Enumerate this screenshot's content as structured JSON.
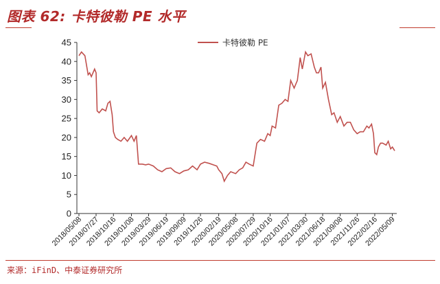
{
  "header": {
    "title": "图表 62:  卡特彼勒 PE 水平"
  },
  "footer": {
    "source": "来源：iFinD、中泰证券研究所"
  },
  "colors": {
    "accent": "#c0392b",
    "series": "#c0504d"
  },
  "chart_data": {
    "type": "line",
    "title": "",
    "xlabel": "",
    "ylabel": "",
    "ylim": [
      0,
      45
    ],
    "yticks": [
      0,
      5,
      10,
      15,
      20,
      25,
      30,
      35,
      40,
      45
    ],
    "legend_position": "top-center",
    "grid": false,
    "x_tick_labels": [
      "2018/05/08",
      "2018/07/27",
      "2018/10/16",
      "2019/01/08",
      "2019/03/29",
      "2019/06/19",
      "2019/09/09",
      "2019/11/26",
      "2020/02/19",
      "2020/05/08",
      "2020/07/29",
      "2020/10/16",
      "2021/01/07",
      "2021/03/30",
      "2021/06/18",
      "2021/09/08",
      "2021/11/26",
      "2022/02/16",
      "2022/05/09"
    ],
    "series": [
      {
        "name": "卡特彼勒 PE",
        "x": [
          "2018/05/08",
          "2018/05/20",
          "2018/06/05",
          "2018/06/20",
          "2018/06/27",
          "2018/07/05",
          "2018/07/20",
          "2018/07/27",
          "2018/08/01",
          "2018/08/10",
          "2018/08/25",
          "2018/09/10",
          "2018/09/20",
          "2018/09/30",
          "2018/10/10",
          "2018/10/16",
          "2018/10/25",
          "2018/11/05",
          "2018/11/20",
          "2018/12/05",
          "2018/12/20",
          "2019/01/08",
          "2019/01/20",
          "2019/01/31",
          "2019/02/10",
          "2019/02/28",
          "2019/03/15",
          "2019/03/29",
          "2019/04/20",
          "2019/05/10",
          "2019/05/30",
          "2019/06/19",
          "2019/07/10",
          "2019/07/30",
          "2019/08/20",
          "2019/09/09",
          "2019/09/30",
          "2019/10/20",
          "2019/11/10",
          "2019/11/26",
          "2019/12/15",
          "2020/01/05",
          "2020/01/25",
          "2020/02/10",
          "2020/02/19",
          "2020/03/05",
          "2020/03/16",
          "2020/03/31",
          "2020/04/15",
          "2020/05/08",
          "2020/05/25",
          "2020/06/10",
          "2020/06/25",
          "2020/07/10",
          "2020/07/29",
          "2020/08/15",
          "2020/09/01",
          "2020/09/20",
          "2020/10/05",
          "2020/10/16",
          "2020/10/25",
          "2020/11/10",
          "2020/11/25",
          "2020/12/10",
          "2020/12/25",
          "2021/01/07",
          "2021/01/20",
          "2021/02/05",
          "2021/02/20",
          "2021/03/05",
          "2021/03/15",
          "2021/03/30",
          "2021/04/10",
          "2021/04/25",
          "2021/05/10",
          "2021/05/20",
          "2021/05/30",
          "2021/06/10",
          "2021/06/18",
          "2021/07/01",
          "2021/07/15",
          "2021/07/30",
          "2021/08/10",
          "2021/08/25",
          "2021/09/08",
          "2021/09/25",
          "2021/10/10",
          "2021/10/25",
          "2021/11/10",
          "2021/11/26",
          "2021/12/10",
          "2021/12/25",
          "2022/01/10",
          "2022/01/20",
          "2022/02/01",
          "2022/02/10",
          "2022/02/16",
          "2022/02/25",
          "2022/03/05",
          "2022/03/15",
          "2022/03/25",
          "2022/04/10",
          "2022/04/20",
          "2022/05/01",
          "2022/05/09",
          "2022/05/20"
        ],
        "values": [
          41.5,
          42.5,
          41.5,
          36.5,
          37,
          36,
          38,
          37,
          27,
          26.5,
          27.5,
          27,
          29,
          29.5,
          26,
          21.5,
          20,
          19.5,
          19,
          20,
          19,
          20.5,
          19,
          20.5,
          13,
          13,
          12.8,
          13,
          12.5,
          11.5,
          11,
          11.8,
          12,
          11,
          10.5,
          11.2,
          11.5,
          12.5,
          11.5,
          13,
          13.5,
          13.2,
          12.8,
          12.5,
          11.5,
          10.5,
          8.5,
          10,
          11,
          10.5,
          11.5,
          12,
          13.5,
          13,
          12.5,
          18.5,
          19.5,
          19,
          21,
          20.5,
          23,
          22.5,
          28.5,
          29,
          30,
          29.5,
          35,
          33,
          35,
          41,
          38,
          42.5,
          41.5,
          42,
          38.5,
          37,
          37,
          38.5,
          33,
          34.5,
          30,
          26,
          26.5,
          24,
          25.5,
          23,
          24,
          24,
          22,
          21,
          21.5,
          21.5,
          23,
          22.5,
          23.5,
          21,
          16,
          15.5,
          17.5,
          18.5,
          18.5,
          18,
          19,
          17,
          17.5,
          16.5
        ]
      }
    ]
  }
}
